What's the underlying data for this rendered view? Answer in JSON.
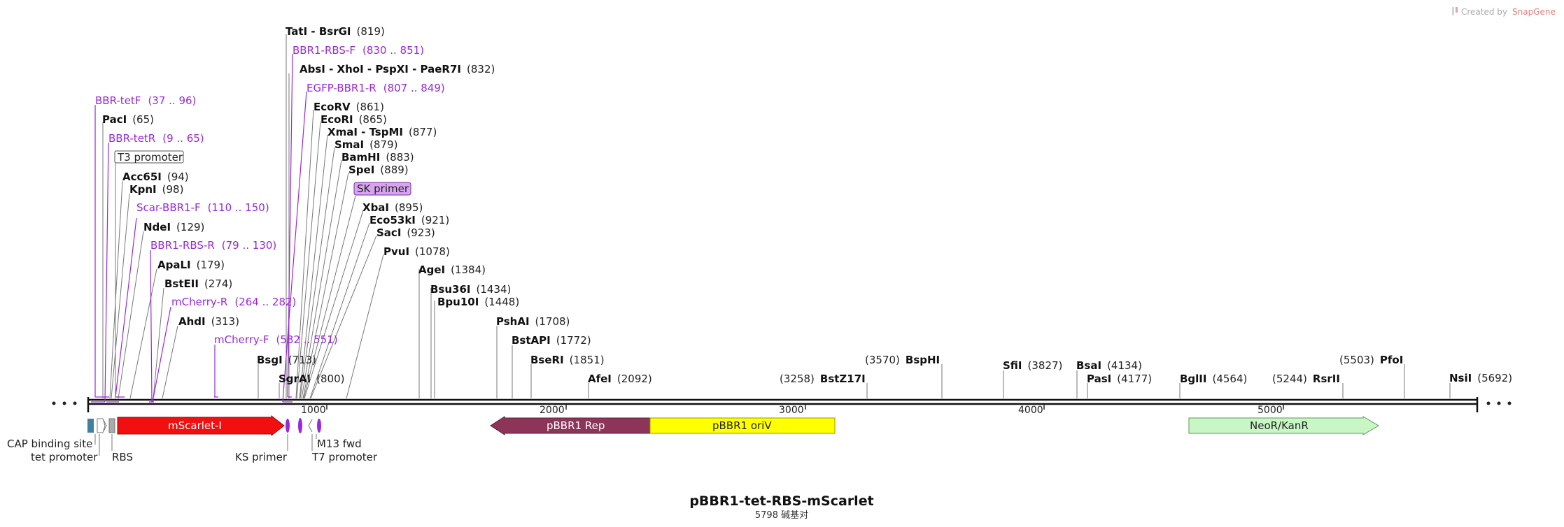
{
  "plasmid": {
    "name": "pBBR1-tet-RBS-mScarlet",
    "length_label": "5798 碱基对"
  },
  "watermark": {
    "prefix": "Created by",
    "brand": "SnapGene"
  },
  "ticks": [
    "1000",
    "2000",
    "3000",
    "4000",
    "5000"
  ],
  "enzymes_top": [
    {
      "name": "TatI - BsrGI",
      "pos": "(819)"
    },
    {
      "name": "AbsI - XhoI - PspXI - PaeR7I",
      "pos": "(832)"
    },
    {
      "name": "EcoRV",
      "pos": "(861)"
    },
    {
      "name": "EcoRI",
      "pos": "(865)"
    },
    {
      "name": "XmaI - TspMI",
      "pos": "(877)"
    },
    {
      "name": "SmaI",
      "pos": "(879)"
    },
    {
      "name": "BamHI",
      "pos": "(883)"
    },
    {
      "name": "SpeI",
      "pos": "(889)"
    },
    {
      "name": "XbaI",
      "pos": "(895)"
    },
    {
      "name": "Eco53kI",
      "pos": "(921)"
    },
    {
      "name": "SacI",
      "pos": "(923)"
    },
    {
      "name": "PvuI",
      "pos": "(1078)"
    },
    {
      "name": "PacI",
      "pos": "(65)"
    },
    {
      "name": "Acc65I",
      "pos": "(94)"
    },
    {
      "name": "KpnI",
      "pos": "(98)"
    },
    {
      "name": "NdeI",
      "pos": "(129)"
    },
    {
      "name": "ApaLI",
      "pos": "(179)"
    },
    {
      "name": "BstEII",
      "pos": "(274)"
    },
    {
      "name": "AhdI",
      "pos": "(313)"
    },
    {
      "name": "BsgI",
      "pos": "(713)"
    },
    {
      "name": "SgrAI",
      "pos": "(800)"
    },
    {
      "name": "AgeI",
      "pos": "(1384)"
    },
    {
      "name": "Bsu36I",
      "pos": "(1434)"
    },
    {
      "name": "Bpu10I",
      "pos": "(1448)"
    },
    {
      "name": "PshAI",
      "pos": "(1708)"
    },
    {
      "name": "BstAPI",
      "pos": "(1772)"
    },
    {
      "name": "BseRI",
      "pos": "(1851)"
    },
    {
      "name": "AfeI",
      "pos": "(2092)"
    },
    {
      "name": "BstZ17I",
      "pos": "(3258)"
    },
    {
      "name": "BspHI",
      "pos": "(3570)"
    },
    {
      "name": "SfiI",
      "pos": "(3827)"
    },
    {
      "name": "BsaI",
      "pos": "(4134)"
    },
    {
      "name": "PasI",
      "pos": "(4177)"
    },
    {
      "name": "BglII",
      "pos": "(4564)"
    },
    {
      "name": "RsrII",
      "pos": "(5244)"
    },
    {
      "name": "PfoI",
      "pos": "(5503)"
    },
    {
      "name": "NsiI",
      "pos": "(5692)"
    }
  ],
  "primers": [
    {
      "name": "BBR1-RBS-F",
      "range": "(830 .. 851)"
    },
    {
      "name": "EGFP-BBR1-R",
      "range": "(807 .. 849)"
    },
    {
      "name": "BBR-tetF",
      "range": "(37 .. 96)"
    },
    {
      "name": "BBR-tetR",
      "range": "(9 .. 65)"
    },
    {
      "name": "Scar-BBR1-F",
      "range": "(110 .. 150)"
    },
    {
      "name": "BBR1-RBS-R",
      "range": "(79 .. 130)"
    },
    {
      "name": "mCherry-R",
      "range": "(264 .. 282)"
    },
    {
      "name": "mCherry-F",
      "range": "(532 .. 551)"
    }
  ],
  "boxed_labels": {
    "t3": "T3 promoter",
    "sk": "SK primer"
  },
  "features": {
    "mscarlet": "mScarlet-I",
    "rep": "pBBR1 Rep",
    "oriv": "pBBR1 oriV",
    "neor": "NeoR/KanR"
  },
  "bottom_labels": {
    "cap": "CAP binding site",
    "tet": "tet promoter",
    "rbs": "RBS",
    "ks": "KS primer",
    "m13": "M13 fwd",
    "t7": "T7 promoter"
  },
  "colors": {
    "primer": "#9a28d8",
    "mscarlet": "#f20f0f",
    "rep": "#8c3559",
    "oriv": "#ffff00",
    "neor": "#c8f7c5",
    "cap": "#3f7fa0"
  }
}
